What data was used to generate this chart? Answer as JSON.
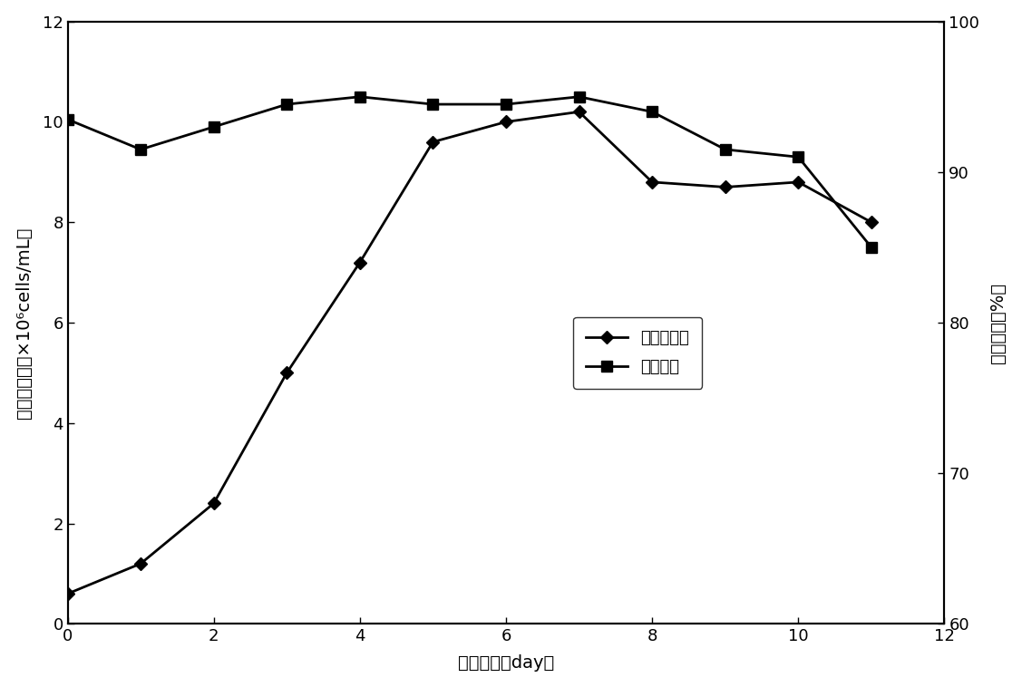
{
  "days": [
    0,
    1,
    2,
    3,
    4,
    5,
    6,
    7,
    8,
    9,
    10,
    11
  ],
  "cell_density": [
    0.6,
    1.2,
    2.4,
    5.0,
    7.2,
    9.6,
    10.0,
    10.2,
    8.8,
    8.7,
    8.8,
    8.0
  ],
  "cell_viability": [
    93.5,
    91.5,
    93.0,
    94.5,
    95.0,
    94.5,
    94.5,
    95.0,
    94.0,
    91.5,
    91.0,
    85.0
  ],
  "xlabel": "培养时间（day）",
  "ylabel_left": "活细胞密度（×10⁶cells/mL）",
  "ylabel_right": "细胞活率（%）",
  "legend_density": "活细胞密度",
  "legend_viability": "细胞活率",
  "xlim": [
    0,
    12
  ],
  "ylim_left": [
    0,
    12
  ],
  "ylim_right": [
    60.0,
    100.0
  ],
  "yticks_left": [
    0,
    2,
    4,
    6,
    8,
    10,
    12
  ],
  "yticks_right": [
    60.0,
    70.0,
    80.0,
    90.0,
    100.0
  ],
  "xticks": [
    0,
    2,
    4,
    6,
    8,
    10,
    12
  ],
  "line_color": "#000000",
  "bg_color": "#ffffff",
  "border_color": "#000000",
  "font_size_label": 14,
  "font_size_tick": 13,
  "font_size_legend": 13
}
